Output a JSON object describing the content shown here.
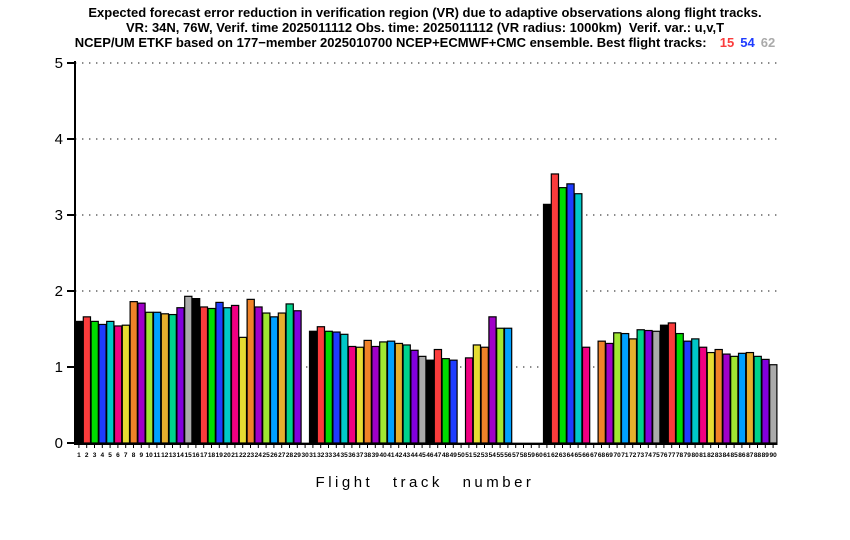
{
  "header": {
    "line1": "Expected forecast error reduction in verification region (VR) due to adaptive observations along flight tracks.",
    "line2": "VR: 34N, 76W, Verif. time 2025011112 Obs. time: 2025011112 (VR radius: 1000km)  Verif. var.: u,v,T",
    "line3": "NCEP/UM ETKF based on 177−member 2025010700 NCEP+ECMWF+CMC ensemble. Best flight tracks:  ",
    "best_tracks": [
      {
        "label": "15",
        "color": "#fa3c3c"
      },
      {
        "label": "54",
        "color": "#1e3cff"
      },
      {
        "label": "62",
        "color": "#aaaaaa"
      }
    ]
  },
  "chart_data": {
    "type": "bar",
    "title": "Expected forecast error reduction in verification region (VR) due to adaptive observations along flight tracks.",
    "xlabel": "Flight track number",
    "ylabel": "",
    "xlim": [
      1,
      90
    ],
    "ylim": [
      0,
      5
    ],
    "yticks": [
      0,
      1,
      2,
      3,
      4,
      5
    ],
    "grid": "horizontal dotted lines at each integer y value",
    "legend": "none",
    "x_tick_labels": "integers 1 through 90, one per bar slot",
    "missing_tracks": [
      30,
      50,
      57,
      58,
      59,
      60,
      67
    ],
    "bar_color_cycle": [
      "#000000",
      "#fa3c3c",
      "#00dc00",
      "#1e3cff",
      "#00c8c8",
      "#f00082",
      "#e6dc32",
      "#f08228",
      "#a000c8",
      "#a0e632",
      "#00a0ff",
      "#e6af2d",
      "#00d28c",
      "#8200dc",
      "#aaaaaa"
    ],
    "color_rule": "bar for track n is filled with bar_color_cycle[(n-1) mod 15], black outline",
    "values": [
      1.6,
      1.66,
      1.6,
      1.56,
      1.6,
      1.54,
      1.55,
      1.86,
      1.84,
      1.72,
      1.72,
      1.7,
      1.69,
      1.78,
      1.93,
      1.9,
      1.79,
      1.77,
      1.85,
      1.78,
      1.81,
      1.39,
      1.89,
      1.79,
      1.71,
      1.66,
      1.71,
      1.83,
      1.74,
      null,
      1.47,
      1.53,
      1.47,
      1.46,
      1.43,
      1.27,
      1.26,
      1.35,
      1.27,
      1.33,
      1.34,
      1.31,
      1.29,
      1.22,
      1.14,
      1.09,
      1.23,
      1.11,
      1.09,
      null,
      1.12,
      1.29,
      1.26,
      1.66,
      1.51,
      1.51,
      null,
      null,
      null,
      null,
      3.14,
      3.54,
      3.36,
      3.41,
      3.28,
      1.26,
      null,
      1.34,
      1.31,
      1.45,
      1.44,
      1.37,
      1.49,
      1.48,
      1.47,
      1.55,
      1.58,
      1.44,
      1.34,
      1.37,
      1.26,
      1.19,
      1.23,
      1.17,
      1.14,
      1.18,
      1.19,
      1.14,
      1.1,
      1.03
    ]
  }
}
